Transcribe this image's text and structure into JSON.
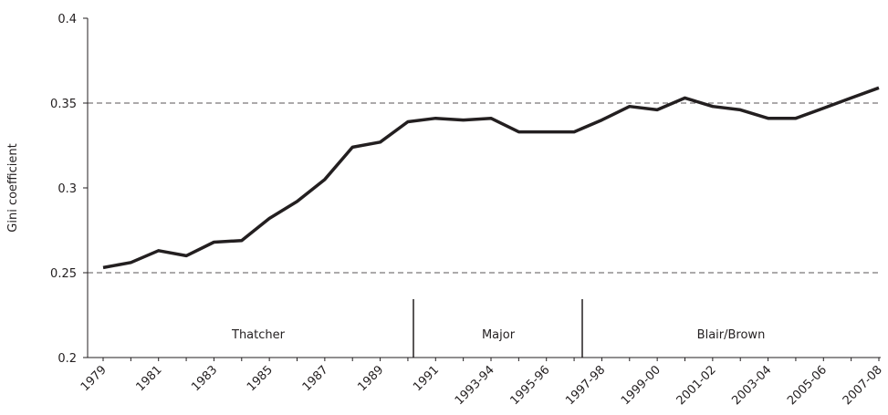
{
  "chart_data": {
    "type": "line",
    "y_label": "Gini coefficient",
    "categories": [
      "1979",
      null,
      "1981",
      null,
      "1983",
      null,
      "1985",
      null,
      "1987",
      null,
      "1989",
      null,
      "1991",
      null,
      "1993-94",
      null,
      "1995-96",
      null,
      "1997-98",
      null,
      "1999-00",
      null,
      "2001-02",
      null,
      "2003-04",
      null,
      "2005-06",
      null,
      "2007-08"
    ],
    "series": [
      {
        "color": "#231f20",
        "values": [
          0.253,
          0.256,
          0.263,
          0.26,
          0.268,
          0.269,
          0.282,
          0.292,
          0.305,
          0.324,
          0.327,
          0.339,
          0.341,
          0.34,
          0.341,
          0.333,
          0.333,
          0.333,
          0.34,
          0.348,
          0.346,
          0.353,
          0.348,
          0.346,
          0.341,
          0.341,
          0.347,
          0.353,
          0.359
        ]
      }
    ],
    "ylim": [
      0.2,
      0.4
    ],
    "yticks": [
      0.2,
      0.25,
      0.3,
      0.35,
      0.4
    ],
    "reference_lines": [
      0.25,
      0.35
    ],
    "annotations": [
      "Thatcher",
      "Major",
      "Blair/Brown"
    ]
  }
}
